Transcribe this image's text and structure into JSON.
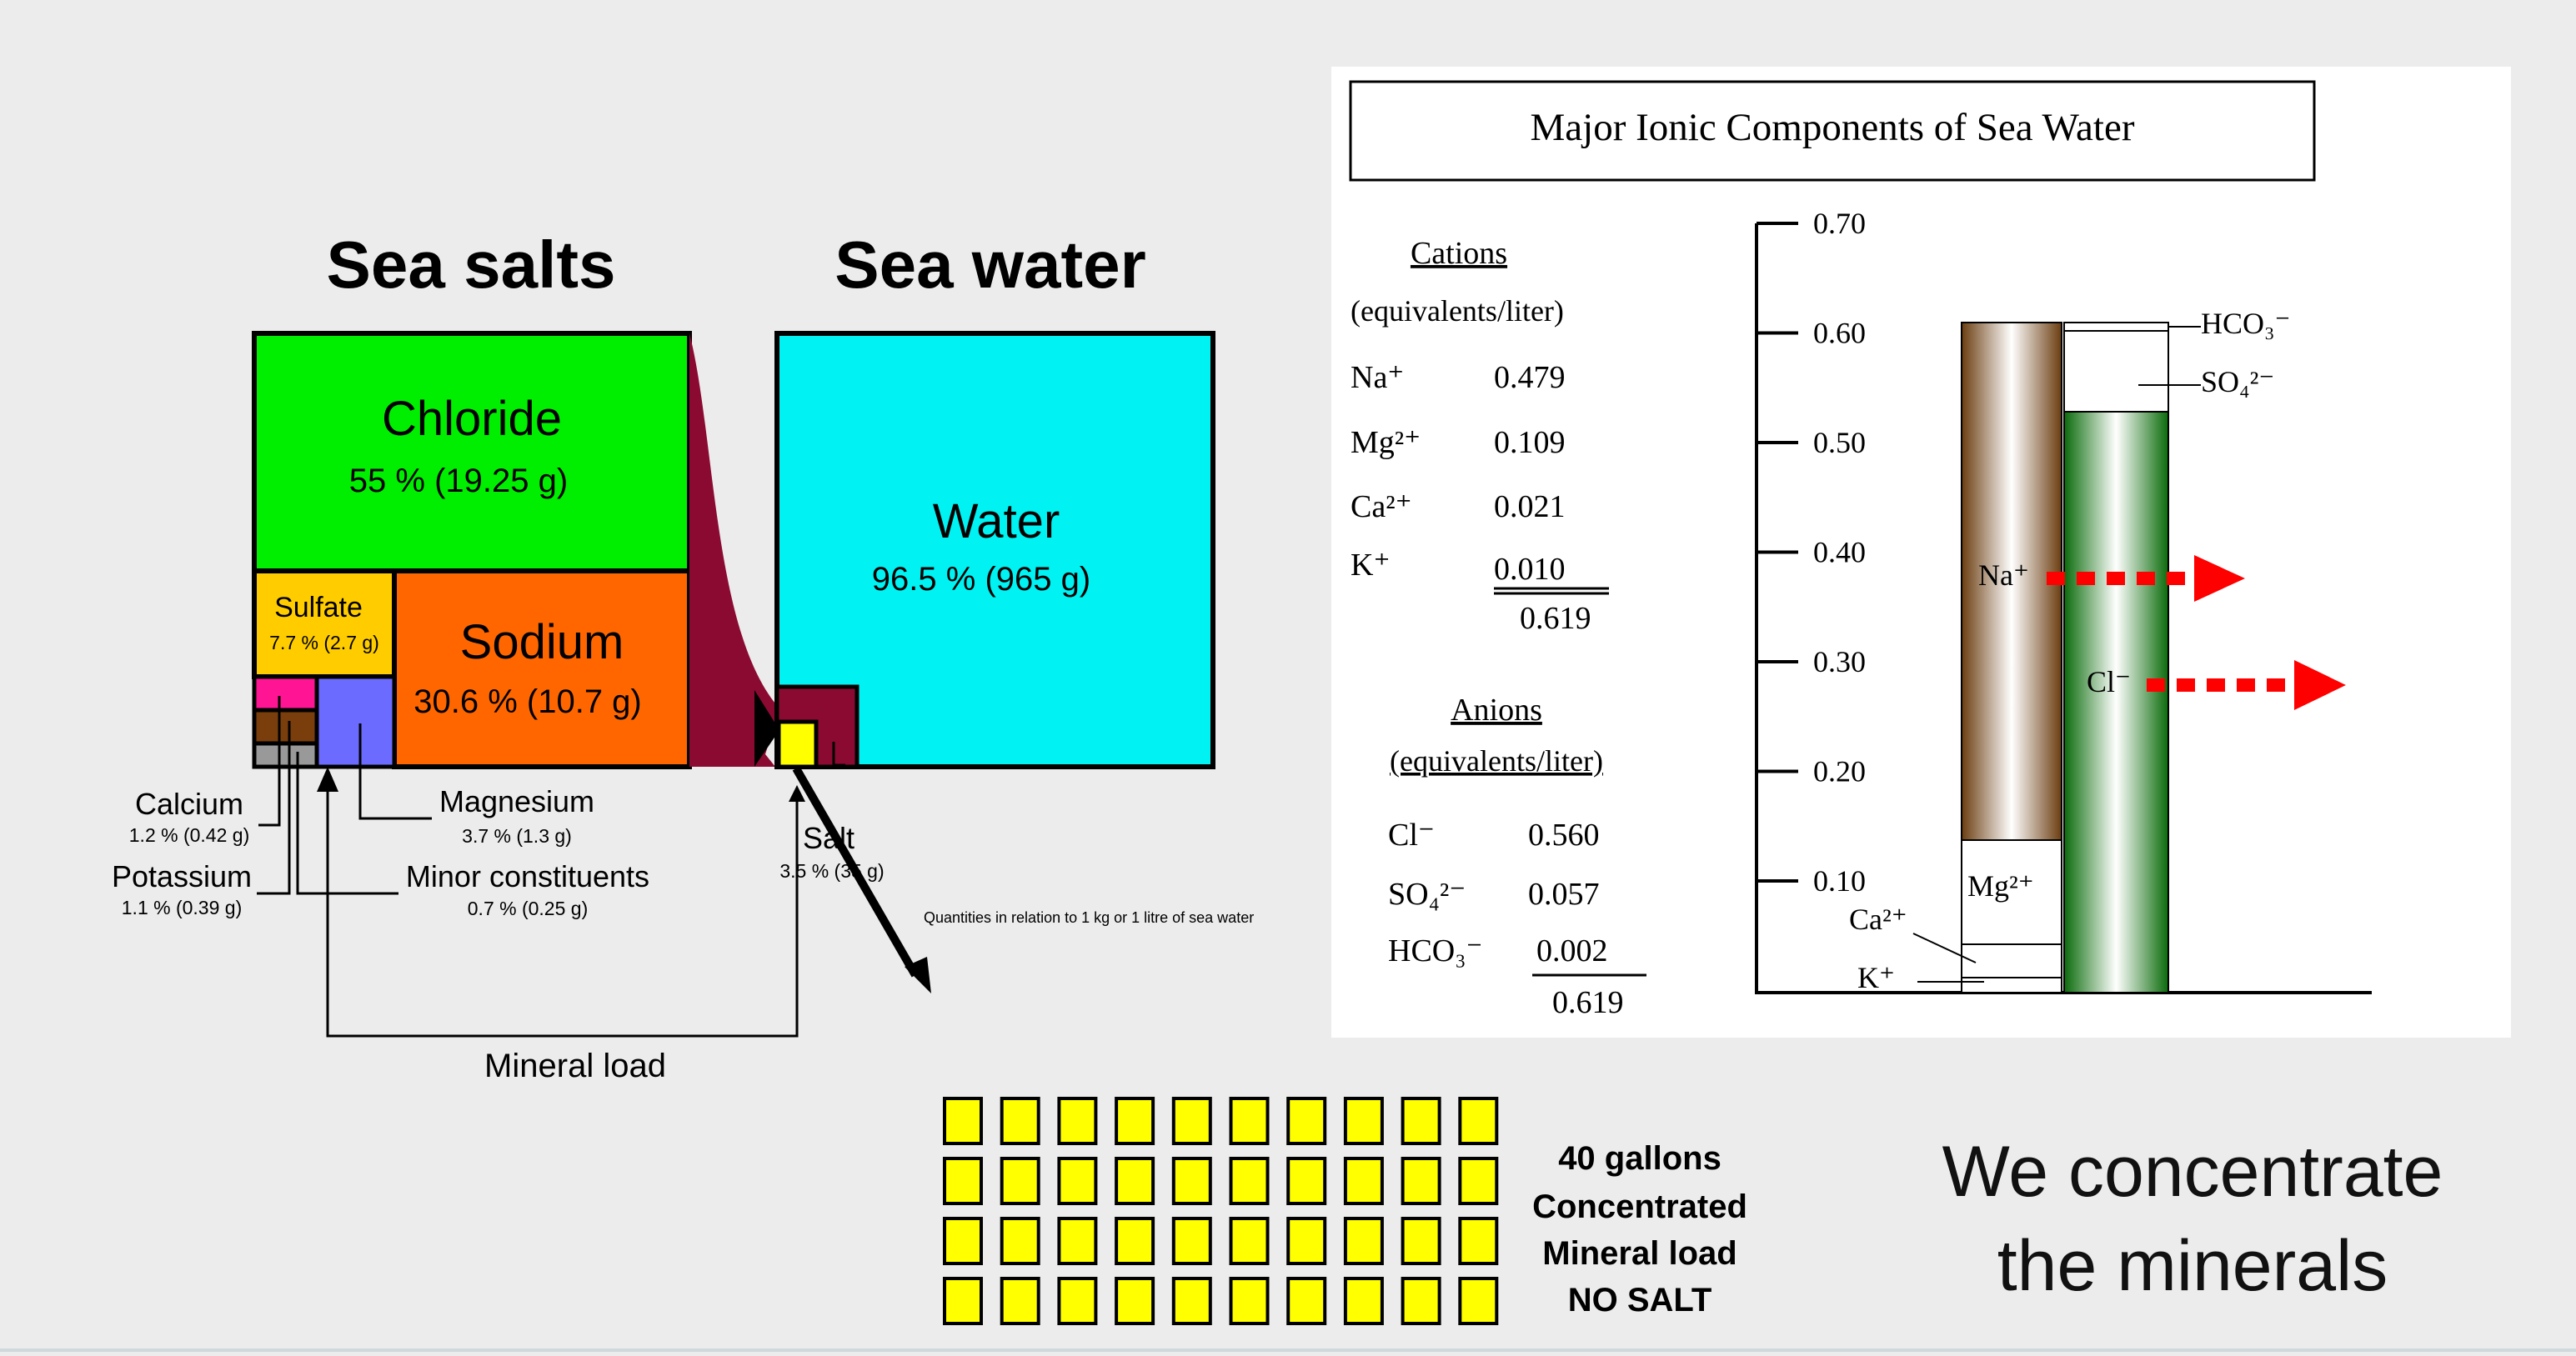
{
  "sea_salts": {
    "title": "Sea salts",
    "chloride": {
      "name": "Chloride",
      "value": "55 % (19.25 g)"
    },
    "sodium": {
      "name": "Sodium",
      "value": "30.6 % (10.7 g)"
    },
    "sulfate": {
      "name": "Sulfate",
      "value": "7.7 % (2.7 g)"
    },
    "calcium": {
      "name": "Calcium",
      "value": "1.2 % (0.42 g)"
    },
    "potassium": {
      "name": "Potassium",
      "value": "1.1 % (0.39 g)"
    },
    "magnesium": {
      "name": "Magnesium",
      "value": "3.7 % (1.3 g)"
    },
    "minor": {
      "name": "Minor constituents",
      "value": "0.7 % (0.25 g)"
    }
  },
  "sea_water": {
    "title": "Sea water",
    "water": {
      "name": "Water",
      "value": "96.5 % (965 g)"
    },
    "salt": {
      "name": "Salt",
      "value": "3.5 % (35 g)"
    },
    "quantities_note": "Quantities in relation to 1 kg or 1 litre of sea water"
  },
  "mineral_load_label": "Mineral load",
  "colors": {
    "chloride": "#00ee00",
    "sodium": "#ff6600",
    "sulfate": "#ffcc00",
    "calcium": "#ff1493",
    "potassium": "#7a3e0c",
    "minor": "#999999",
    "magnesium": "#6b6bff",
    "water": "#00f2f2",
    "salt": "#ffff00",
    "salt_box": "#8b0a32",
    "arrow": "#8b0a32"
  },
  "ionic": {
    "title": "Major Ionic Components of Sea Water",
    "cations": {
      "heading": "Cations",
      "unit": "(equivalents/liter)",
      "rows": [
        {
          "ion": "Na⁺",
          "value": "0.479"
        },
        {
          "ion": "Mg²⁺",
          "value": "0.109"
        },
        {
          "ion": "Ca²⁺",
          "value": "0.021"
        },
        {
          "ion": "K⁺",
          "value": "0.010"
        }
      ],
      "total": "0.619"
    },
    "anions": {
      "heading": "Anions",
      "unit": "(equivalents/liter)",
      "rows": [
        {
          "ion": "Cl⁻",
          "value": "0.560"
        },
        {
          "ion": "SO₄²⁻",
          "value": "0.057"
        },
        {
          "ion": "HCO₃⁻",
          "value": "0.002"
        }
      ],
      "total": "0.619"
    },
    "axis_ticks": [
      "0.70",
      "0.60",
      "0.50",
      "0.40",
      "0.30",
      "0.20",
      "0.10"
    ],
    "bar_labels": {
      "hco3": "HCO₃⁻",
      "so4": "SO₄²⁻",
      "na": "Na⁺",
      "cl": "Cl⁻",
      "mg": "Mg²⁺",
      "ca": "Ca²⁺",
      "k": "K⁺"
    }
  },
  "blocks": {
    "rows": 4,
    "cols": 10
  },
  "concentrate_note": [
    "40 gallons",
    "Concentrated",
    "Mineral load",
    "NO SALT"
  ],
  "headline": [
    "We concentrate",
    "the minerals"
  ]
}
